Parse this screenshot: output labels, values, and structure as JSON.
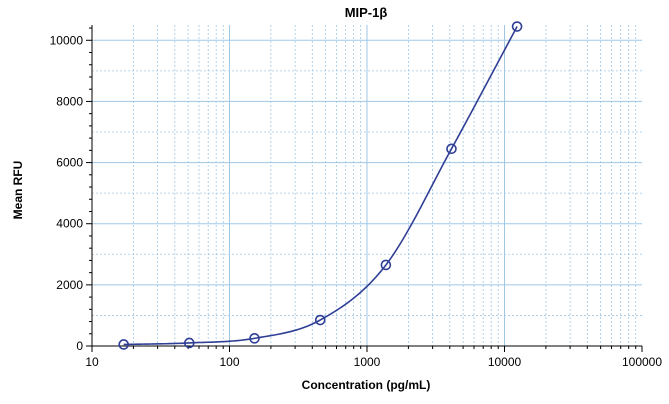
{
  "chart_data": {
    "type": "scatter",
    "title": "MIP-1β",
    "xlabel": "Concentration (pg/mL)",
    "ylabel": "Mean RFU",
    "x_scale": "log",
    "xlim": [
      10,
      100000
    ],
    "ylim": [
      0,
      10500
    ],
    "x_ticks": [
      10,
      100,
      1000,
      10000,
      100000
    ],
    "x_tick_labels": [
      "10",
      "100",
      "1000",
      "10000",
      "100000"
    ],
    "y_ticks": [
      0,
      2000,
      4000,
      6000,
      8000,
      10000
    ],
    "y_tick_labels": [
      "0",
      "2000",
      "4000",
      "6000",
      "8000",
      "10000"
    ],
    "grid": true,
    "series": [
      {
        "points": [
          {
            "x": 17,
            "y": 50
          },
          {
            "x": 51,
            "y": 100
          },
          {
            "x": 152,
            "y": 250
          },
          {
            "x": 457,
            "y": 850
          },
          {
            "x": 1372,
            "y": 2650
          },
          {
            "x": 4115,
            "y": 6450
          },
          {
            "x": 12346,
            "y": 10450
          }
        ],
        "fit": "4PL curve",
        "color": "#2f3f95"
      }
    ]
  }
}
